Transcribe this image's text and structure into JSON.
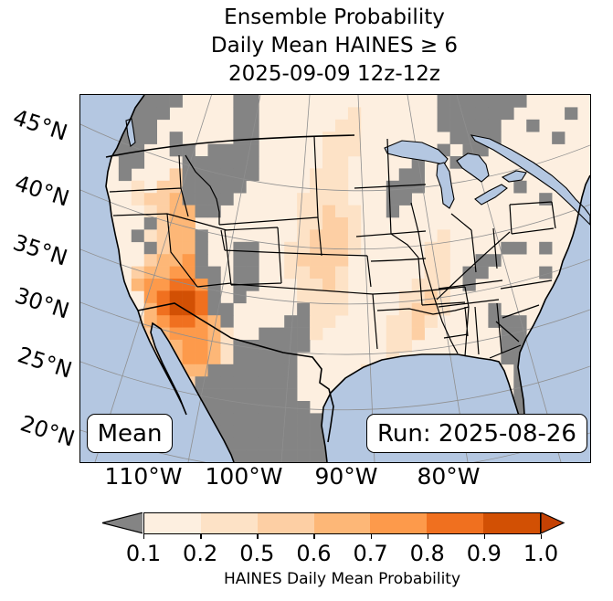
{
  "title": {
    "line1": "Ensemble Probability",
    "line2": "Daily Mean HAINES ≥ 6",
    "line3": "2025-09-09 12z-12z"
  },
  "map": {
    "mean_label": "Mean",
    "run_label": "Run: 2025-08-26",
    "lat_labels": [
      "45°N",
      "40°N",
      "35°N",
      "30°N",
      "25°N",
      "20°N"
    ],
    "lon_labels": [
      "110°W",
      "100°W",
      "90°W",
      "80°W"
    ]
  },
  "colorbar": {
    "label": "HAINES Daily Mean Probability",
    "ticks": [
      "0.1",
      "0.2",
      "0.5",
      "0.6",
      "0.7",
      "0.8",
      "0.9",
      "1.0"
    ],
    "segment_colors": [
      "#FDEFE0",
      "#FDE2C6",
      "#FDCFA4",
      "#FDB777",
      "#FD9A4B",
      "#F0701F",
      "#D25004"
    ],
    "under_color": "#848484",
    "over_color": "#C44103"
  },
  "colors": {
    "ocean": "#B4C7E1",
    "land_base": "#FDEFE0",
    "masked_gray": "#848484",
    "graticule": "#8F8F8F",
    "border": "#000000",
    "box_bg": "#FFFFFF"
  },
  "chart_data": {
    "type": "heatmap",
    "title": "Ensemble Probability Daily Mean HAINES ≥ 6, 2025-09-09 12z-12z",
    "statistic": "Mean",
    "run": "2025-08-26",
    "variable": "HAINES Daily Mean Probability",
    "bin_edges": [
      0.1,
      0.2,
      0.5,
      0.6,
      0.7,
      0.8,
      0.9,
      1.0
    ],
    "legend": {
      ".": "no cell / base or ocean",
      "G": "masked, probability < 0.1",
      "2": "0.2-0.5",
      "3": "0.5-0.6",
      "4": "0.6-0.7",
      "5": "0.7-0.8",
      "6": "0.8-0.9",
      "7": "0.9-1.0"
    },
    "notes": "Highest probabilities (0.7-1.0) over southern California / Arizona / Nevada; secondary maxima eastern Oregon-Idaho and NM-Mexico border; masked (gray) over Mexico, Florida, Montana-Wyoming, upper Midwest and parts of Canada; broad 0.2-0.5 band over the central plains; ~0.1-0.2 elsewhere over CONUS.",
    "grid": {
      "cols": 40,
      "rows": 30,
      "rows_data": [
        "..GGGGGG....GG..............GGGGGGG.....",
        "..GGGGG.....GG.......2......GGGGGG....G.",
        "..GGGG......GG......22......GGGGG..G....",
        "..GGGG.G....GG.....222.......GGGG....G..",
        "..GGG..GG.GGGG.....222......G.GG........",
        "...GG...GGGGGG.....22.....G..G..........",
        "...G...3GGGGGG....222....GG.............",
        "....2.33GGGGG.....222...GGG.......G.....",
        "....2334GGGG.....2222...GG..........G...",
        ".....2344GG......22322..G...............",
        ".....G344........22332..................",
        "....G2344G.......23332......2...........",
        ".....G344G..GG..223332.....22....GG.G...",
        ".....3445G..GG..23333......22..GG.......",
        "....34455GG.GG..22332......22.GG....G...",
        "....455665G.GG...2232.....222.G.........",
        ".....56776G.G....2222....2232...........",
        ".....46776GG.....G222....2332...G.......",
        "....2456654G....GG22....2232....GGG.....",
        "....23455542..GGGG2.....223......GG.....",
        "...G.2345542GGGGGG......22.......GGG....",
        "......345542GGGGG.......2........GGG....",
        "......2344GGGGGGG.....2...........GG....",
        ".......23GGGGGGGG......2..........GG....",
        ".......2GGGGGGGGG........2........GG....",
        "........GGGGGGGGGG................G.....",
        ".........GGGGGGGGGG...............G.....",
        "..........GGGGGGGGGG....................",
        "..........GGGGGGGGGGG...................",
        "...........GGGGGGGGGGG.................."
      ]
    }
  }
}
